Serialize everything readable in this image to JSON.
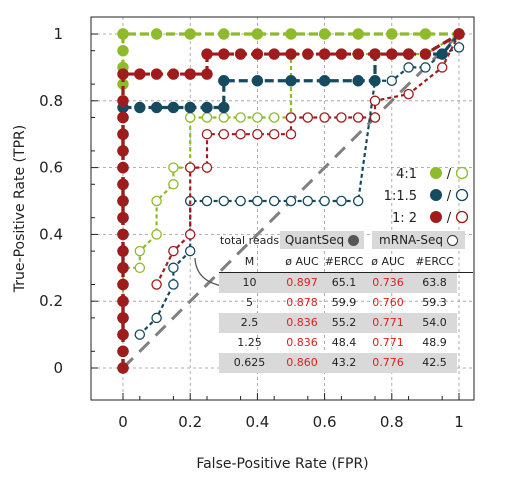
{
  "chart_data": {
    "type": "line",
    "xlabel": "False-Positive Rate (FPR)",
    "ylabel": "True-Positive Rate (TPR)",
    "xlim": [
      0,
      1
    ],
    "ylim": [
      0,
      1
    ],
    "xticks": [
      "0",
      "0.2",
      "0.4",
      "0.6",
      "0.8",
      "1"
    ],
    "yticks": [
      "0",
      "0.2",
      "0.4",
      "0.6",
      "0.8",
      "1"
    ],
    "grid": true,
    "diagonal_reference": true,
    "legend_position": "right",
    "legend": [
      {
        "label": "4:1",
        "color": "#8dbb2b"
      },
      {
        "label": "1:1.5",
        "color": "#164a5f"
      },
      {
        "label": "1: 2",
        "color": "#a01c1c"
      }
    ],
    "legend_separator": "/",
    "series": [
      {
        "ratio": "4:1",
        "method": "QuantSeq",
        "filled": true,
        "color": "#8dbb2b",
        "x": [
          0,
          0,
          0,
          0,
          0,
          0,
          0,
          0,
          0,
          0,
          0,
          0,
          0,
          0,
          0,
          0,
          0,
          0,
          0,
          0,
          0,
          0,
          0.1,
          0.2,
          0.3,
          0.4,
          0.5,
          0.6,
          0.7,
          0.8,
          0.9,
          1.0
        ],
        "y": [
          0,
          0.05,
          0.1,
          0.15,
          0.2,
          0.25,
          0.3,
          0.35,
          0.4,
          0.45,
          0.5,
          0.55,
          0.6,
          0.65,
          0.7,
          0.75,
          0.8,
          0.85,
          0.9,
          0.95,
          1.0,
          1.0,
          1.0,
          1.0,
          1.0,
          1.0,
          1.0,
          1.0,
          1.0,
          1.0,
          1.0,
          1.0
        ]
      },
      {
        "ratio": "1:1.5",
        "method": "QuantSeq",
        "filled": true,
        "color": "#164a5f",
        "x": [
          0,
          0,
          0,
          0,
          0,
          0,
          0,
          0,
          0,
          0,
          0,
          0,
          0,
          0,
          0,
          0,
          0,
          0.05,
          0.1,
          0.15,
          0.2,
          0.25,
          0.3,
          0.3,
          0.4,
          0.5,
          0.6,
          0.7,
          0.75,
          0.75,
          0.85,
          0.95,
          1.0
        ],
        "y": [
          0,
          0.05,
          0.1,
          0.15,
          0.2,
          0.25,
          0.3,
          0.35,
          0.4,
          0.45,
          0.5,
          0.55,
          0.6,
          0.65,
          0.7,
          0.75,
          0.78,
          0.78,
          0.78,
          0.78,
          0.78,
          0.78,
          0.78,
          0.86,
          0.86,
          0.86,
          0.86,
          0.86,
          0.86,
          0.94,
          0.94,
          0.94,
          1.0
        ]
      },
      {
        "ratio": "1: 2",
        "method": "QuantSeq",
        "filled": true,
        "color": "#a01c1c",
        "x": [
          0,
          0,
          0,
          0,
          0,
          0,
          0,
          0,
          0,
          0,
          0,
          0,
          0,
          0,
          0,
          0,
          0,
          0,
          0.05,
          0.1,
          0.15,
          0.2,
          0.25,
          0.25,
          0.3,
          0.35,
          0.4,
          0.45,
          0.5,
          0.55,
          0.6,
          0.65,
          0.7,
          0.75,
          0.8,
          0.85,
          0.9,
          1.0
        ],
        "y": [
          0,
          0.05,
          0.1,
          0.15,
          0.2,
          0.25,
          0.3,
          0.35,
          0.4,
          0.45,
          0.5,
          0.55,
          0.6,
          0.65,
          0.7,
          0.75,
          0.8,
          0.88,
          0.88,
          0.88,
          0.88,
          0.88,
          0.88,
          0.94,
          0.94,
          0.94,
          0.94,
          0.94,
          0.94,
          0.94,
          0.94,
          0.94,
          0.94,
          0.94,
          0.94,
          0.94,
          0.94,
          1.0
        ]
      },
      {
        "ratio": "4:1",
        "method": "mRNA-Seq",
        "filled": false,
        "color": "#8dbb2b",
        "x": [
          0,
          0,
          0,
          0.05,
          0.05,
          0.1,
          0.1,
          0.15,
          0.15,
          0.2,
          0.2,
          0.25,
          0.3,
          0.35,
          0.4,
          0.45,
          0.5,
          0.5,
          0.55,
          0.6,
          0.65,
          0.7,
          0.8,
          0.9,
          1.0
        ],
        "y": [
          0.1,
          0.2,
          0.3,
          0.3,
          0.35,
          0.4,
          0.5,
          0.55,
          0.6,
          0.6,
          0.75,
          0.75,
          0.75,
          0.75,
          0.75,
          0.75,
          0.75,
          0.94,
          0.94,
          0.94,
          0.94,
          0.94,
          0.94,
          0.94,
          1.0
        ]
      },
      {
        "ratio": "1:1.5",
        "method": "mRNA-Seq",
        "filled": false,
        "color": "#164a5f",
        "x": [
          0.05,
          0.1,
          0.15,
          0.15,
          0.2,
          0.2,
          0.25,
          0.3,
          0.35,
          0.4,
          0.45,
          0.5,
          0.55,
          0.6,
          0.65,
          0.7,
          0.75,
          0.8,
          0.85,
          0.9,
          0.95,
          1.0
        ],
        "y": [
          0.1,
          0.15,
          0.25,
          0.3,
          0.35,
          0.5,
          0.5,
          0.5,
          0.5,
          0.5,
          0.5,
          0.5,
          0.5,
          0.5,
          0.5,
          0.5,
          0.86,
          0.86,
          0.9,
          0.9,
          0.94,
          0.96
        ]
      },
      {
        "ratio": "1: 2",
        "method": "mRNA-Seq",
        "filled": false,
        "color": "#a01c1c",
        "x": [
          0.1,
          0.15,
          0.2,
          0.2,
          0.25,
          0.25,
          0.3,
          0.35,
          0.4,
          0.45,
          0.5,
          0.5,
          0.55,
          0.6,
          0.65,
          0.7,
          0.75,
          0.75,
          0.85,
          0.95,
          1.0
        ],
        "y": [
          0.25,
          0.35,
          0.4,
          0.6,
          0.6,
          0.7,
          0.7,
          0.7,
          0.7,
          0.7,
          0.7,
          0.75,
          0.75,
          0.75,
          0.75,
          0.75,
          0.75,
          0.8,
          0.82,
          0.9,
          1.0
        ]
      }
    ],
    "table": {
      "col_label": "total reads",
      "row_label": "M",
      "group1": "QuantSeq",
      "group2": "mRNA-Seq",
      "sub_auc": "ø AUC",
      "sub_ercc": "#ERCC",
      "rows": [
        {
          "reads": "10",
          "q_auc": "0.897",
          "q_ercc": "65.1",
          "m_auc": "0.736",
          "m_ercc": "63.8"
        },
        {
          "reads": "5",
          "q_auc": "0.878",
          "q_ercc": "59.9",
          "m_auc": "0.760",
          "m_ercc": "59.3"
        },
        {
          "reads": "2.5",
          "q_auc": "0.836",
          "q_ercc": "55.2",
          "m_auc": "0.771",
          "m_ercc": "54.0"
        },
        {
          "reads": "1.25",
          "q_auc": "0.836",
          "q_ercc": "48.4",
          "m_auc": "0.771",
          "m_ercc": "48.9"
        },
        {
          "reads": "0.625",
          "q_auc": "0.860",
          "q_ercc": "43.2",
          "m_auc": "0.776",
          "m_ercc": "42.5"
        }
      ]
    }
  }
}
